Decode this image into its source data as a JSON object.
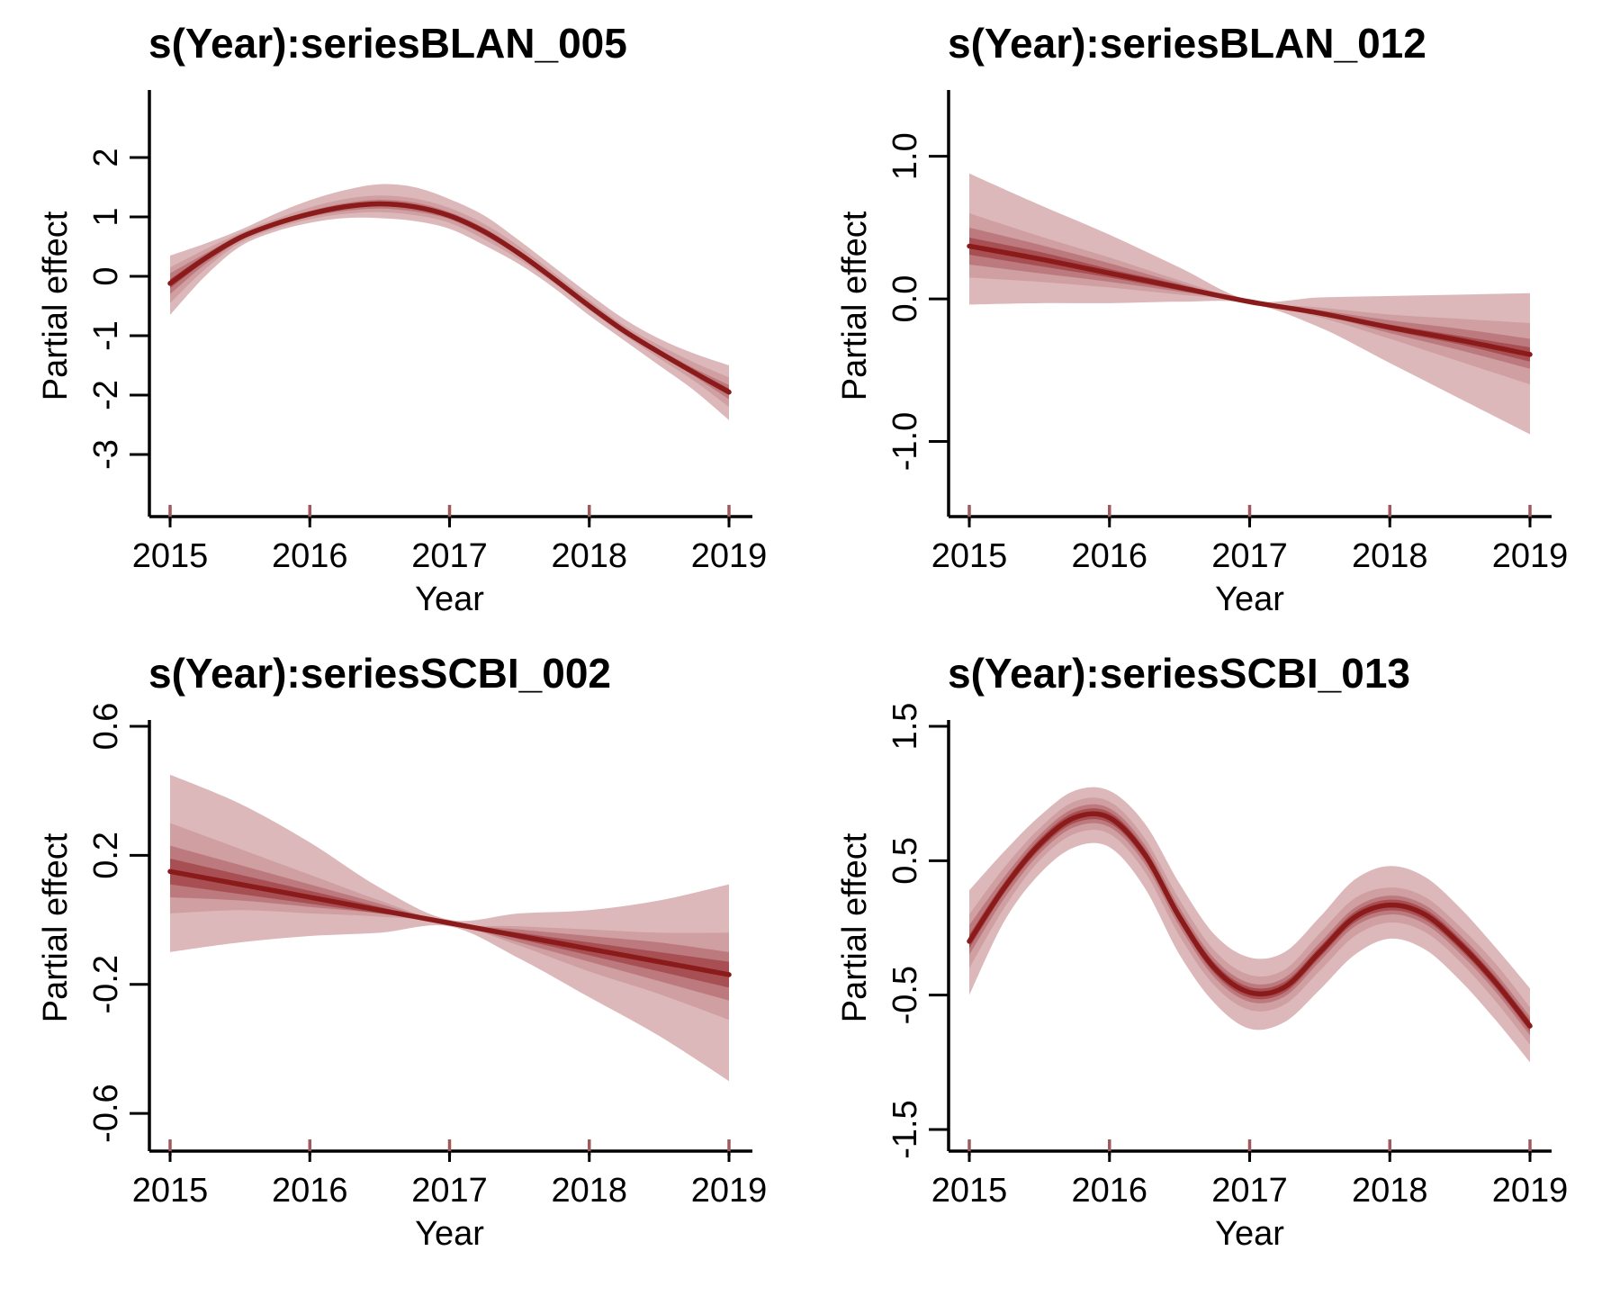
{
  "colors": {
    "line": "#8b1a1a",
    "band_outer": "#dcb8ba",
    "band_mid1": "#cf9fa2",
    "band_mid2": "#bd7a7e",
    "band_inner": "#a84f53",
    "rug": "#a05a5e",
    "axis": "#000000"
  },
  "chart_data": [
    {
      "type": "line",
      "title": "s(Year):seriesBLAN_005",
      "xlabel": "Year",
      "ylabel": "Partial effect",
      "xlim": [
        2015,
        2019
      ],
      "ylim": [
        -3.5,
        2.5
      ],
      "xticks": [
        "2015",
        "2016",
        "2017",
        "2018",
        "2019"
      ],
      "yticks": [
        "-3",
        "-2",
        "-1",
        "0",
        "1",
        "2"
      ],
      "rug": [
        2015,
        2016,
        2017,
        2018,
        2019
      ],
      "x": [
        2015.0,
        2015.25,
        2015.5,
        2015.75,
        2016.0,
        2016.25,
        2016.5,
        2016.75,
        2017.0,
        2017.25,
        2017.5,
        2017.75,
        2018.0,
        2018.25,
        2018.5,
        2018.75,
        2019.0
      ],
      "median": [
        -0.12,
        0.3,
        0.65,
        0.88,
        1.05,
        1.17,
        1.22,
        1.17,
        1.02,
        0.75,
        0.38,
        -0.05,
        -0.5,
        -0.92,
        -1.28,
        -1.62,
        -1.95
      ],
      "bands": [
        {
          "level": "outer",
          "lower": [
            -0.65,
            0.0,
            0.5,
            0.75,
            0.9,
            0.98,
            0.98,
            0.93,
            0.8,
            0.52,
            0.2,
            -0.2,
            -0.66,
            -1.08,
            -1.5,
            -1.92,
            -2.42
          ],
          "upper": [
            0.35,
            0.55,
            0.78,
            1.05,
            1.28,
            1.45,
            1.55,
            1.5,
            1.3,
            1.02,
            0.6,
            0.15,
            -0.3,
            -0.72,
            -1.05,
            -1.3,
            -1.5
          ]
        },
        {
          "level": "mid1",
          "lower": [
            -0.45,
            0.12,
            0.56,
            0.8,
            0.96,
            1.05,
            1.08,
            1.03,
            0.9,
            0.62,
            0.28,
            -0.12,
            -0.57,
            -0.99,
            -1.38,
            -1.76,
            -2.2
          ],
          "upper": [
            0.15,
            0.45,
            0.73,
            0.96,
            1.16,
            1.3,
            1.36,
            1.31,
            1.15,
            0.88,
            0.5,
            0.05,
            -0.4,
            -0.83,
            -1.16,
            -1.45,
            -1.7
          ]
        },
        {
          "level": "mid2",
          "lower": [
            -0.3,
            0.2,
            0.6,
            0.84,
            1.0,
            1.1,
            1.14,
            1.09,
            0.96,
            0.69,
            0.33,
            -0.08,
            -0.53,
            -0.95,
            -1.32,
            -1.68,
            -2.07
          ],
          "upper": [
            0.05,
            0.38,
            0.7,
            0.92,
            1.1,
            1.23,
            1.29,
            1.24,
            1.08,
            0.81,
            0.43,
            -0.01,
            -0.46,
            -0.88,
            -1.23,
            -1.55,
            -1.83
          ]
        },
        {
          "level": "inner",
          "lower": [
            -0.2,
            0.25,
            0.62,
            0.86,
            1.02,
            1.13,
            1.18,
            1.13,
            0.99,
            0.72,
            0.35,
            -0.06,
            -0.51,
            -0.93,
            -1.3,
            -1.65,
            -2.0
          ],
          "upper": [
            -0.05,
            0.35,
            0.68,
            0.9,
            1.08,
            1.2,
            1.26,
            1.21,
            1.05,
            0.78,
            0.41,
            -0.03,
            -0.48,
            -0.9,
            -1.26,
            -1.58,
            -1.89
          ]
        }
      ]
    },
    {
      "type": "line",
      "title": "s(Year):seriesBLAN_012",
      "xlabel": "Year",
      "ylabel": "Partial effect",
      "xlim": [
        2015,
        2019
      ],
      "ylim": [
        -1.3,
        1.2
      ],
      "xticks": [
        "2015",
        "2016",
        "2017",
        "2018",
        "2019"
      ],
      "yticks": [
        "-1.0",
        "0.0",
        "1.0"
      ],
      "rug": [
        2015,
        2016,
        2017,
        2018,
        2019
      ],
      "x": [
        2015.0,
        2015.5,
        2016.0,
        2016.5,
        2017.0,
        2017.5,
        2018.0,
        2018.5,
        2019.0
      ],
      "median": [
        0.37,
        0.28,
        0.18,
        0.08,
        -0.02,
        -0.1,
        -0.2,
        -0.29,
        -0.39
      ],
      "bands": [
        {
          "level": "outer",
          "lower": [
            -0.04,
            -0.03,
            -0.03,
            -0.02,
            -0.03,
            -0.2,
            -0.45,
            -0.7,
            -0.95
          ],
          "upper": [
            0.88,
            0.66,
            0.45,
            0.22,
            -0.01,
            0.01,
            0.02,
            0.03,
            0.04
          ]
        },
        {
          "level": "mid1",
          "lower": [
            0.15,
            0.12,
            0.08,
            0.03,
            -0.02,
            -0.13,
            -0.28,
            -0.44,
            -0.6
          ],
          "upper": [
            0.6,
            0.44,
            0.29,
            0.13,
            -0.02,
            -0.06,
            -0.11,
            -0.14,
            -0.17
          ]
        },
        {
          "level": "mid2",
          "lower": [
            0.24,
            0.18,
            0.12,
            0.05,
            -0.02,
            -0.11,
            -0.24,
            -0.36,
            -0.49
          ],
          "upper": [
            0.5,
            0.38,
            0.25,
            0.11,
            -0.02,
            -0.08,
            -0.15,
            -0.21,
            -0.28
          ]
        },
        {
          "level": "inner",
          "lower": [
            0.31,
            0.23,
            0.15,
            0.06,
            -0.02,
            -0.1,
            -0.22,
            -0.32,
            -0.44
          ],
          "upper": [
            0.43,
            0.33,
            0.21,
            0.1,
            -0.02,
            -0.09,
            -0.18,
            -0.26,
            -0.34
          ]
        }
      ]
    },
    {
      "type": "line",
      "title": "s(Year):seriesSCBI_002",
      "xlabel": "Year",
      "ylabel": "Partial effect",
      "xlim": [
        2015,
        2019
      ],
      "ylim": [
        -0.65,
        0.6
      ],
      "xticks": [
        "2015",
        "2016",
        "2017",
        "2018",
        "2019"
      ],
      "yticks": [
        "-0.6",
        "-0.2",
        "0.2",
        "0.6"
      ],
      "rug": [
        2015,
        2016,
        2017,
        2018,
        2019
      ],
      "x": [
        2015.0,
        2015.5,
        2016.0,
        2016.5,
        2017.0,
        2017.5,
        2018.0,
        2018.5,
        2019.0
      ],
      "median": [
        0.15,
        0.11,
        0.07,
        0.03,
        -0.01,
        -0.05,
        -0.09,
        -0.13,
        -0.17
      ],
      "bands": [
        {
          "level": "outer",
          "lower": [
            -0.1,
            -0.07,
            -0.05,
            -0.04,
            -0.02,
            -0.12,
            -0.24,
            -0.36,
            -0.5
          ],
          "upper": [
            0.45,
            0.36,
            0.24,
            0.1,
            0.0,
            0.02,
            0.03,
            0.06,
            0.11
          ]
        },
        {
          "level": "mid1",
          "lower": [
            0.02,
            0.03,
            0.02,
            0.01,
            -0.01,
            -0.08,
            -0.16,
            -0.23,
            -0.31
          ],
          "upper": [
            0.3,
            0.22,
            0.14,
            0.06,
            -0.01,
            -0.02,
            -0.03,
            -0.04,
            -0.04
          ]
        },
        {
          "level": "mid2",
          "lower": [
            0.07,
            0.06,
            0.04,
            0.02,
            -0.01,
            -0.07,
            -0.13,
            -0.19,
            -0.25
          ],
          "upper": [
            0.23,
            0.17,
            0.11,
            0.05,
            -0.01,
            -0.03,
            -0.05,
            -0.07,
            -0.1
          ]
        },
        {
          "level": "inner",
          "lower": [
            0.11,
            0.08,
            0.05,
            0.02,
            -0.01,
            -0.06,
            -0.11,
            -0.16,
            -0.21
          ],
          "upper": [
            0.19,
            0.14,
            0.09,
            0.04,
            -0.01,
            -0.04,
            -0.07,
            -0.1,
            -0.13
          ]
        }
      ]
    },
    {
      "type": "line",
      "title": "s(Year):seriesSCBI_013",
      "xlabel": "Year",
      "ylabel": "Partial effect",
      "xlim": [
        2015,
        2019
      ],
      "ylim": [
        -1.5,
        1.5
      ],
      "xticks": [
        "2015",
        "2016",
        "2017",
        "2018",
        "2019"
      ],
      "yticks": [
        "-1.5",
        "-0.5",
        "0.5",
        "1.5"
      ],
      "rug": [
        2015,
        2016,
        2017,
        2018,
        2019
      ],
      "x": [
        2015.0,
        2015.25,
        2015.5,
        2015.75,
        2016.0,
        2016.25,
        2016.5,
        2016.75,
        2017.0,
        2017.25,
        2017.5,
        2017.75,
        2018.0,
        2018.25,
        2018.5,
        2018.75,
        2019.0
      ],
      "median": [
        -0.1,
        0.3,
        0.62,
        0.82,
        0.82,
        0.55,
        0.08,
        -0.3,
        -0.48,
        -0.44,
        -0.18,
        0.08,
        0.17,
        0.1,
        -0.12,
        -0.4,
        -0.73
      ],
      "bands": [
        {
          "level": "outer",
          "lower": [
            -0.5,
            0.05,
            0.4,
            0.6,
            0.6,
            0.3,
            -0.2,
            -0.56,
            -0.75,
            -0.7,
            -0.46,
            -0.2,
            -0.08,
            -0.16,
            -0.39,
            -0.68,
            -1.0
          ],
          "upper": [
            0.28,
            0.57,
            0.83,
            1.02,
            1.02,
            0.78,
            0.33,
            -0.05,
            -0.22,
            -0.18,
            0.08,
            0.36,
            0.46,
            0.38,
            0.15,
            -0.14,
            -0.45
          ]
        },
        {
          "level": "mid1",
          "lower": [
            -0.3,
            0.15,
            0.5,
            0.7,
            0.7,
            0.42,
            -0.06,
            -0.43,
            -0.61,
            -0.57,
            -0.32,
            -0.06,
            0.04,
            -0.03,
            -0.25,
            -0.54,
            -0.87
          ],
          "upper": [
            0.1,
            0.45,
            0.74,
            0.94,
            0.94,
            0.67,
            0.21,
            -0.17,
            -0.35,
            -0.31,
            -0.04,
            0.22,
            0.3,
            0.23,
            0.01,
            -0.26,
            -0.59
          ]
        },
        {
          "level": "mid2",
          "lower": [
            -0.2,
            0.22,
            0.55,
            0.75,
            0.75,
            0.48,
            0.01,
            -0.37,
            -0.55,
            -0.51,
            -0.25,
            0.01,
            0.1,
            0.03,
            -0.19,
            -0.47,
            -0.8
          ],
          "upper": [
            0.02,
            0.38,
            0.69,
            0.89,
            0.89,
            0.62,
            0.15,
            -0.23,
            -0.41,
            -0.37,
            -0.11,
            0.15,
            0.24,
            0.17,
            -0.05,
            -0.33,
            -0.66
          ]
        },
        {
          "level": "inner",
          "lower": [
            -0.15,
            0.26,
            0.58,
            0.78,
            0.78,
            0.51,
            0.04,
            -0.34,
            -0.52,
            -0.48,
            -0.22,
            0.04,
            0.13,
            0.06,
            -0.16,
            -0.44,
            -0.77
          ],
          "upper": [
            -0.05,
            0.34,
            0.66,
            0.86,
            0.86,
            0.59,
            0.12,
            -0.26,
            -0.44,
            -0.4,
            -0.14,
            0.12,
            0.21,
            0.14,
            -0.08,
            -0.36,
            -0.69
          ]
        }
      ]
    }
  ]
}
